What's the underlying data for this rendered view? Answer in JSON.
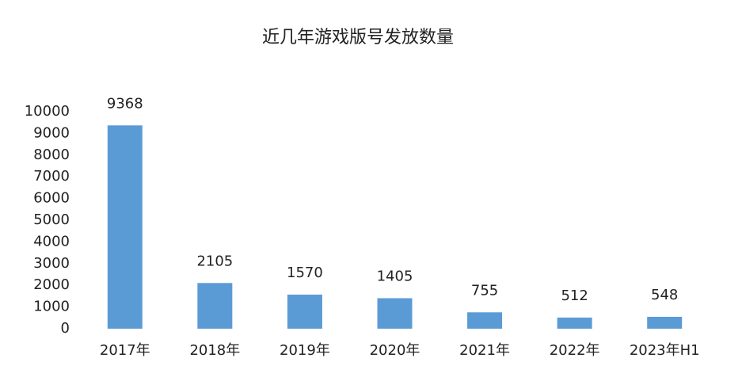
{
  "chart_data": {
    "type": "bar",
    "title": "近几年游戏版号发放数量",
    "categories": [
      "2017年",
      "2018年",
      "2019年",
      "2020年",
      "2021年",
      "2022年",
      "2023年H1"
    ],
    "values": [
      9368,
      2105,
      1570,
      1405,
      755,
      512,
      548
    ],
    "color": "#5b9bd5",
    "ylim": [
      0,
      10000
    ],
    "yticks": [
      0,
      1000,
      2000,
      3000,
      4000,
      5000,
      6000,
      7000,
      8000,
      9000,
      10000
    ],
    "grid": false
  }
}
